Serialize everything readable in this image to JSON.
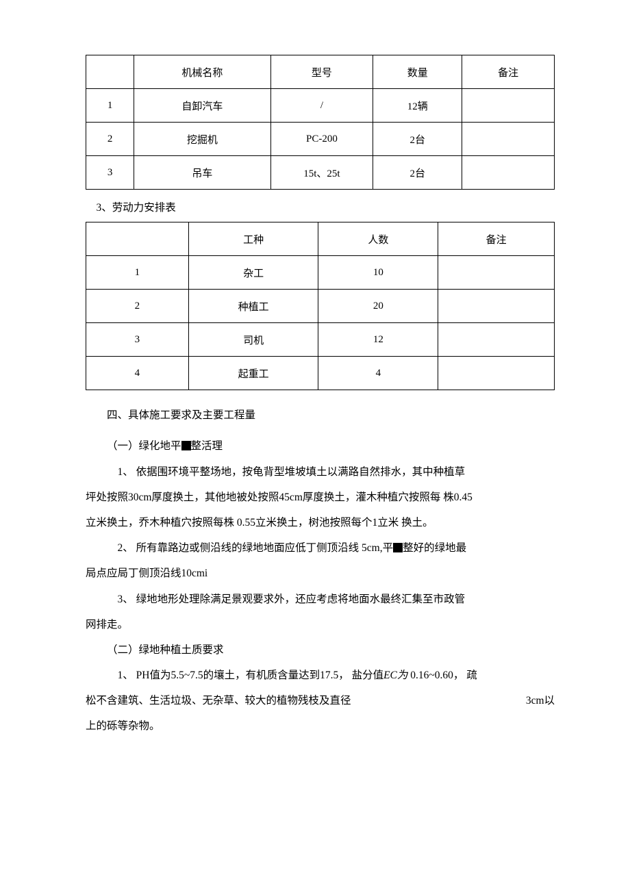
{
  "table1": {
    "headers": [
      "",
      "机械名称",
      "型号",
      "数量",
      "备注"
    ],
    "rows": [
      [
        "1",
        "自卸汽车",
        "/",
        "12辆",
        ""
      ],
      [
        "2",
        "挖掘机",
        "PC-200",
        "2台",
        ""
      ],
      [
        "3",
        "吊车",
        "15t、25t",
        "2台",
        ""
      ]
    ]
  },
  "caption_table2": "3、劳动力安排表",
  "table2": {
    "headers": [
      "",
      "工种",
      "人数",
      "备注"
    ],
    "rows": [
      [
        "1",
        "杂工",
        "10",
        ""
      ],
      [
        "2",
        "种植工",
        "20",
        ""
      ],
      [
        "3",
        "司机",
        "12",
        ""
      ],
      [
        "4",
        "起重工",
        "4",
        ""
      ]
    ]
  },
  "section4_title": "四、具体施工要求及主要工程量",
  "sub1_title_a": "（一）绿化地平",
  "sub1_title_b": "整活理",
  "p1_1a": "1、   依据围环境平整场地，按龟背型堆坡填土以满路自然排水，其中种植草",
  "p1_1b": "坪处按照30cm厚度换土，其他地被处按照45cm厚度换土，灌木种植穴按照每 株0.45",
  "p1_1c": "立米换土，乔木种植穴按照每株 0.55立米换土，树池按照每个1立米 换土。",
  "p1_2a": "2、 所有靠路边或侧沿线的绿地地面应低丁侧顶沿线   5cm,平",
  "p1_2a_tail": "整好的绿地最",
  "p1_2b": "局点应局丁侧顶沿线10cmi",
  "p1_3a": "3、   绿地地形处理除满足景观要求外，还应考虑将地面水最终汇集至市政管",
  "p1_3b": "网排走。",
  "sub2_title": "（二）绿地种植土质要求",
  "p2_1a_head": "1、 PH值为5.5~7.5的壤土，有机质含量达到17.5， 盐分值",
  "p2_1a_ec": "EC为",
  "p2_1a_tail": " 0.16~0.60， 疏",
  "p2_1b_left": "松不含建筑、生活垃圾、无杂草、较大的植物残枝及直径",
  "p2_1b_right": "3cm以",
  "p2_1c": "上的砾等杂物。"
}
